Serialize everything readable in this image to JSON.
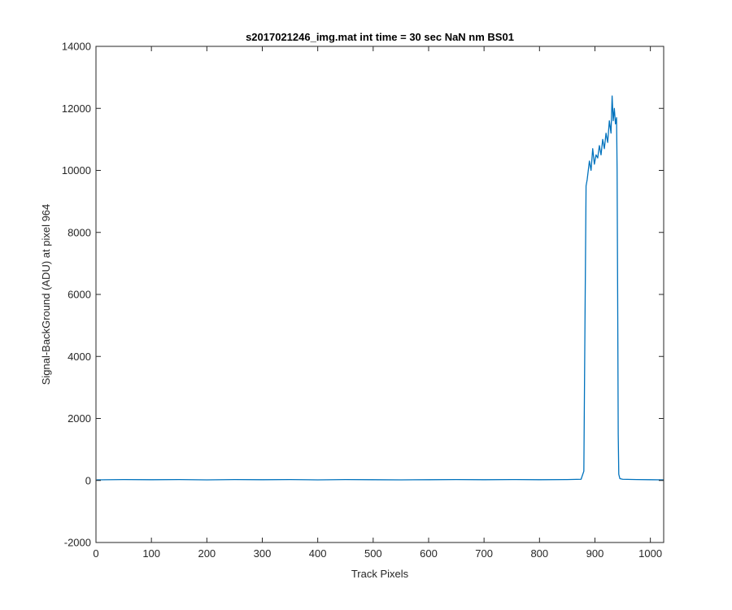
{
  "chart_data": {
    "type": "line",
    "title": "s2017021246_img.mat int time = 30 sec  NaN nm BS01",
    "xlabel": "Track Pixels",
    "ylabel": "Signal-BackGround (ADU) at pixel 964",
    "xlim": [
      0,
      1024
    ],
    "ylim": [
      -2000,
      14000
    ],
    "xticks": [
      0,
      100,
      200,
      300,
      400,
      500,
      600,
      700,
      800,
      900,
      1000
    ],
    "yticks": [
      -2000,
      0,
      2000,
      4000,
      6000,
      8000,
      10000,
      12000,
      14000
    ],
    "grid": false,
    "box": true,
    "series": [
      {
        "color": "#0072BD",
        "x": [
          1,
          50,
          100,
          150,
          200,
          250,
          300,
          350,
          400,
          450,
          500,
          550,
          600,
          650,
          700,
          750,
          800,
          850,
          875,
          880,
          882,
          884,
          886,
          890,
          893,
          896,
          899,
          902,
          905,
          908,
          911,
          914,
          917,
          920,
          923,
          926,
          929,
          931,
          933,
          935,
          937,
          939,
          940,
          941,
          942,
          943,
          945,
          950,
          975,
          1000,
          1024
        ],
        "y": [
          20,
          30,
          25,
          30,
          20,
          30,
          25,
          30,
          20,
          30,
          25,
          20,
          25,
          30,
          25,
          30,
          25,
          30,
          40,
          300,
          5000,
          9500,
          9700,
          10300,
          10000,
          10700,
          10200,
          10500,
          10400,
          10800,
          10500,
          11000,
          10700,
          11200,
          10900,
          11600,
          11200,
          12400,
          11600,
          12000,
          11500,
          11700,
          10000,
          6000,
          1500,
          200,
          60,
          40,
          30,
          25,
          20
        ]
      }
    ]
  }
}
